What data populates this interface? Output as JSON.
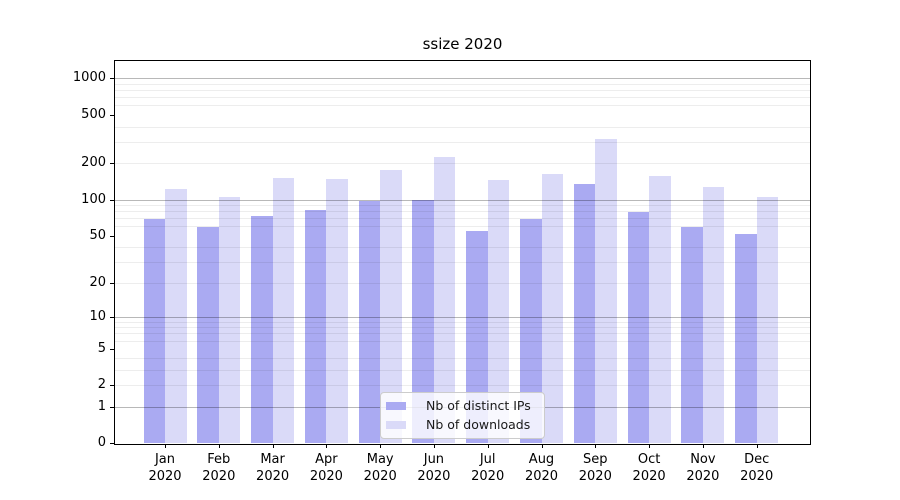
{
  "title": "ssize 2020",
  "chart_data": {
    "type": "bar",
    "title": "ssize 2020",
    "categories": [
      "Jan\n2020",
      "Feb\n2020",
      "Mar\n2020",
      "Apr\n2020",
      "May\n2020",
      "Jun\n2020",
      "Jul\n2020",
      "Aug\n2020",
      "Sep\n2020",
      "Oct\n2020",
      "Nov\n2020",
      "Dec\n2020"
    ],
    "series": [
      {
        "name": "Nb of distinct IPs",
        "key": "distinct-ips",
        "color": "#aaaaf2",
        "values": [
          69,
          59,
          73,
          82,
          98,
          100,
          55,
          69,
          134,
          79,
          59,
          52
        ]
      },
      {
        "name": "Nb of downloads",
        "key": "downloads",
        "color": "#dadaf8",
        "values": [
          122,
          104,
          152,
          148,
          176,
          227,
          146,
          163,
          317,
          156,
          126,
          104
        ]
      }
    ],
    "xlabel": "",
    "ylabel": "",
    "y_axis": {
      "scale": "log1p",
      "ticks": [
        0,
        1,
        2,
        5,
        10,
        20,
        50,
        100,
        200,
        500,
        1000
      ],
      "major_gridlines": [
        1,
        10,
        100,
        1000
      ],
      "minor_gridlines": [
        2,
        3,
        4,
        6,
        7,
        8,
        9,
        20,
        30,
        40,
        60,
        70,
        80,
        90,
        200,
        300,
        400,
        600,
        700,
        800,
        900
      ],
      "ylim": [
        0,
        1400
      ]
    },
    "grid": true,
    "legend_position": "lower center"
  }
}
